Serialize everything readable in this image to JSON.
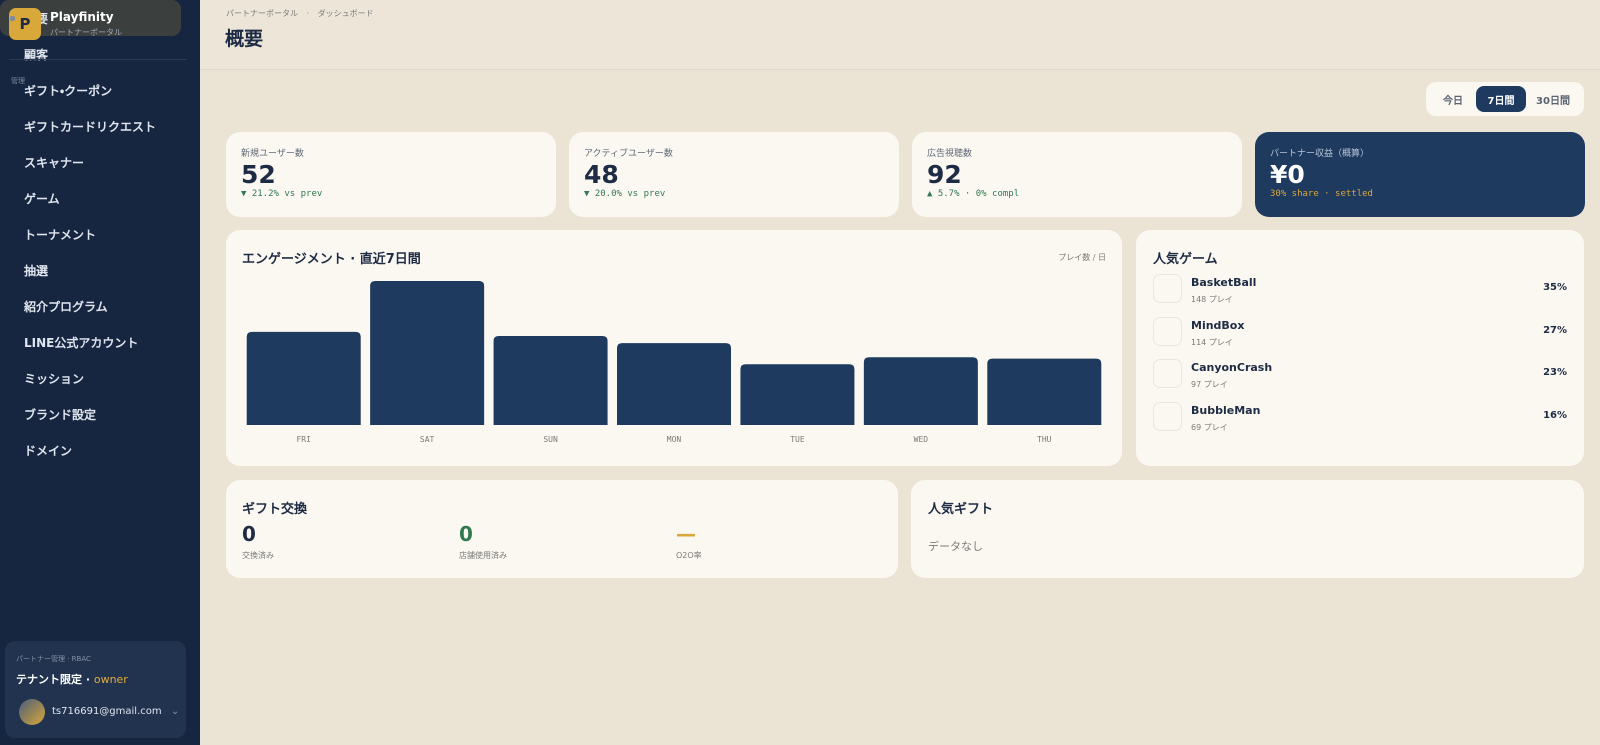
{
  "sidebar": {
    "brand": {
      "logo": "P",
      "name": "Playfinity",
      "subtitle": "パートナーポータル"
    },
    "section": "管理",
    "nav": [
      "概要",
      "顧客",
      "ギフト・クーポン",
      "ギフトカードリクエスト",
      "スキャナー",
      "ゲーム",
      "トーナメント",
      "抽選",
      "紹介プログラム",
      "LINE公式アカウント",
      "ミッション",
      "ブランド設定",
      "ドメイン"
    ],
    "active": 0,
    "footer": {
      "caption": "パートナー管理 · RBAC",
      "scope": "テナント限定 · ",
      "role": "owner",
      "email": "ts716691@gmail.com"
    }
  },
  "header": {
    "breadcrumb": [
      "パートナーポータル",
      "ダッシュボード"
    ],
    "separator": "·",
    "title": "概要"
  },
  "period_tabs": {
    "options": [
      "今日",
      "7日間",
      "30日間"
    ],
    "active": 1
  },
  "kpis": [
    {
      "label": "新規ユーザー数",
      "value": 52,
      "delta": "▼ 21.2% vs prev"
    },
    {
      "label": "アクティブユーザー数",
      "value": 48,
      "delta": "▼ 20.0% vs prev"
    },
    {
      "label": "広告視聴数",
      "value": 92,
      "delta": "▲ 5.7% · 0% compl"
    },
    {
      "label": "パートナー収益（概算）",
      "value": "¥0",
      "delta": "30% share · settled"
    }
  ],
  "engagement": {
    "type": "bar",
    "title": "エンゲージメント · 直近7日間",
    "unit_label": "プレイ数 / 日",
    "categories": [
      "FRI",
      "SAT",
      "SUN",
      "MON",
      "TUE",
      "WED",
      "THU"
    ],
    "values": [
      66,
      102,
      63,
      58,
      43,
      48,
      47
    ],
    "color": "#1e3a5f"
  },
  "popular_games": {
    "title": "人気ゲーム",
    "items": [
      {
        "name": "BasketBall",
        "plays": "148 プレイ",
        "share": "35%"
      },
      {
        "name": "MindBox",
        "plays": "114 プレイ",
        "share": "27%"
      },
      {
        "name": "CanyonCrash",
        "plays": "97 プレイ",
        "share": "23%"
      },
      {
        "name": "BubbleMan",
        "plays": "69 プレイ",
        "share": "16%"
      }
    ]
  },
  "gift_exchange": {
    "title": "ギフト交換",
    "stats": [
      {
        "value": "0",
        "label": "交換済み"
      },
      {
        "value": "0",
        "label": "店舗使用済み"
      },
      {
        "value": "—",
        "label": "O2O率"
      }
    ]
  },
  "popular_gifts": {
    "title": "人気ギフト",
    "empty": "データなし"
  }
}
